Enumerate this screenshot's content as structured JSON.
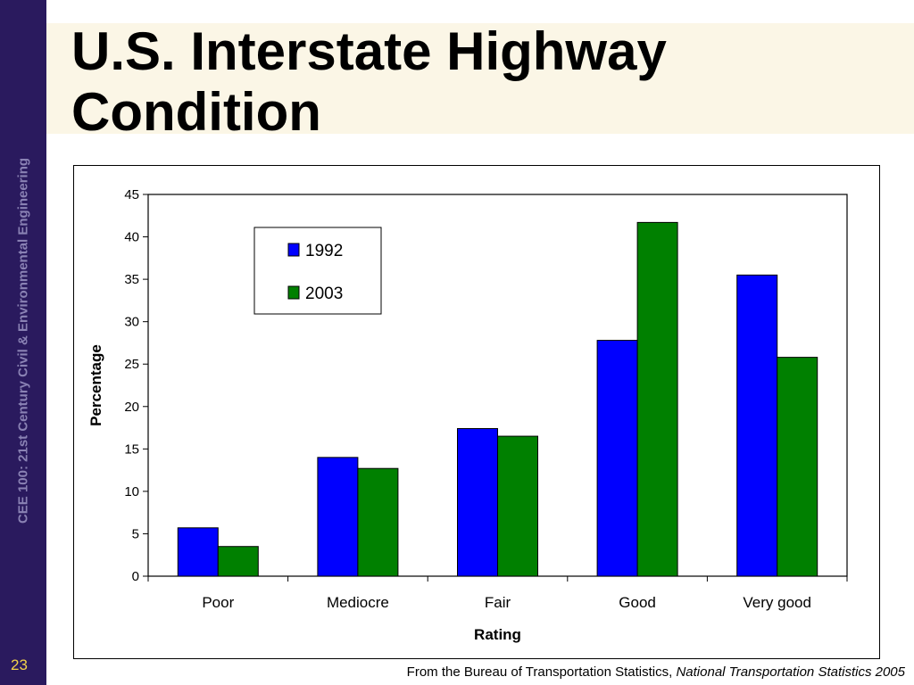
{
  "slide": {
    "title": "U.S. Interstate Highway Condition",
    "sidebar_text": "CEE 100: 21st Century Civil & Environmental Engineering",
    "page_number": "23",
    "source_prefix": "From the Bureau of Transportation Statistics, ",
    "source_publication": "National Transportation Statistics 2005"
  },
  "colors": {
    "sidebar": "#2a1a5e",
    "title_band": "#fbf6e6",
    "page_number": "#f2d24a"
  },
  "chart_data": {
    "type": "bar",
    "title": "",
    "xlabel": "Rating",
    "ylabel": "Percentage",
    "categories": [
      "Poor",
      "Mediocre",
      "Fair",
      "Good",
      "Very good"
    ],
    "series": [
      {
        "name": "1992",
        "color": "#0000ff",
        "values": [
          5.7,
          14.0,
          17.4,
          27.8,
          35.5
        ]
      },
      {
        "name": "2003",
        "color": "#008000",
        "values": [
          3.5,
          12.7,
          16.5,
          41.7,
          25.8
        ]
      }
    ],
    "ylim": [
      0,
      45
    ],
    "yticks": [
      "0",
      "5",
      "10",
      "15",
      "20",
      "25",
      "30",
      "35",
      "40",
      "45"
    ],
    "grid": false,
    "legend_position": "top-left"
  }
}
